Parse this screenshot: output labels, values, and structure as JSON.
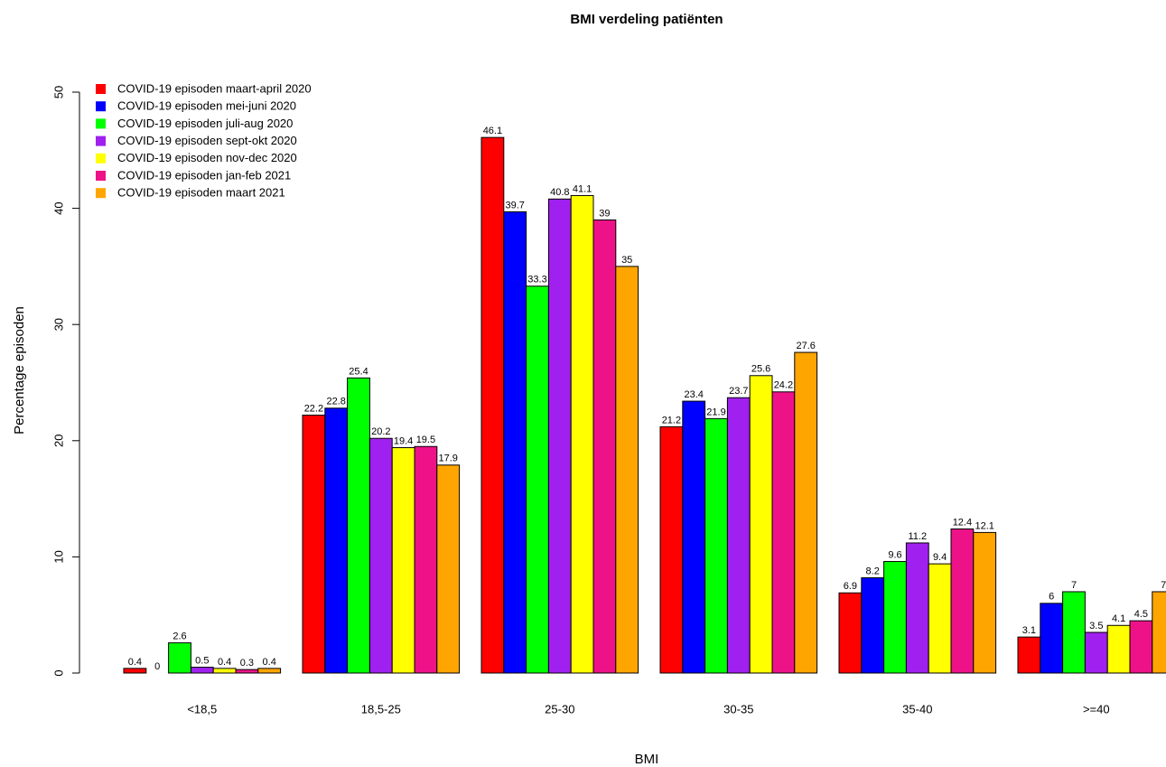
{
  "chart_data": {
    "type": "bar",
    "title": "BMI verdeling patiënten",
    "xlabel": "BMI",
    "ylabel": "Percentage episoden",
    "categories": [
      "<18,5",
      "18,5-25",
      "25-30",
      "30-35",
      "35-40",
      ">=40"
    ],
    "series": [
      {
        "name": "COVID-19 episoden maart-april 2020",
        "color": "#ff0000",
        "values": [
          0.4,
          22.2,
          46.1,
          21.2,
          6.9,
          3.1
        ]
      },
      {
        "name": "COVID-19 episoden mei-juni 2020",
        "color": "#0000ff",
        "values": [
          0,
          22.8,
          39.7,
          23.4,
          8.2,
          6
        ]
      },
      {
        "name": "COVID-19 episoden juli-aug 2020",
        "color": "#00ff00",
        "values": [
          2.6,
          25.4,
          33.3,
          21.9,
          9.6,
          7
        ]
      },
      {
        "name": "COVID-19 episoden sept-okt 2020",
        "color": "#a020f0",
        "values": [
          0.5,
          20.2,
          40.8,
          23.7,
          11.2,
          3.5
        ]
      },
      {
        "name": "COVID-19 episoden nov-dec 2020",
        "color": "#ffff00",
        "values": [
          0.4,
          19.4,
          41.1,
          25.6,
          9.4,
          4.1
        ]
      },
      {
        "name": "COVID-19 episoden jan-feb 2021",
        "color": "#ee1289",
        "values": [
          0.3,
          19.5,
          39,
          24.2,
          12.4,
          4.5
        ]
      },
      {
        "name": "COVID-19 episoden maart 2021",
        "color": "#ffa500",
        "values": [
          0.4,
          17.9,
          35,
          27.6,
          12.1,
          7
        ]
      }
    ],
    "ylim": [
      0,
      50
    ],
    "yticks": [
      0,
      10,
      20,
      30,
      40,
      50
    ],
    "legend": "top-left"
  }
}
